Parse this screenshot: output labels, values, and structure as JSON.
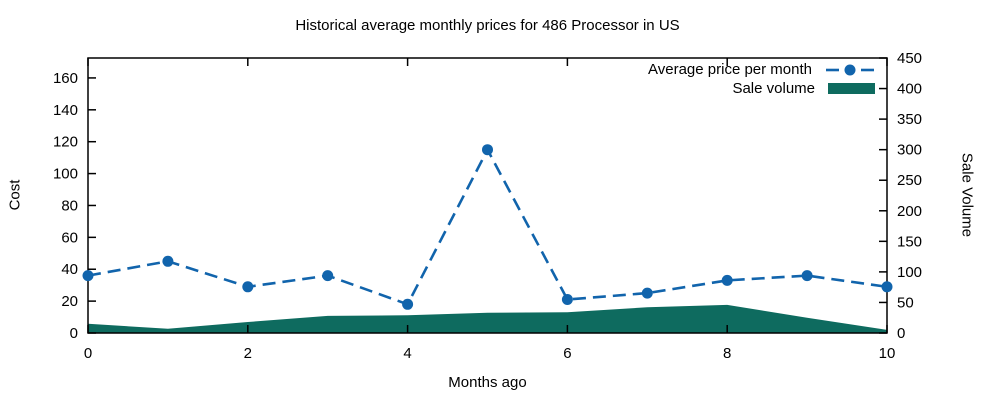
{
  "chart_data": {
    "type": "line",
    "title": "Historical average monthly prices for 486 Processor in US",
    "xlabel": "Months ago",
    "ylabel": "Cost",
    "y2label": "Sale Volume",
    "x": [
      0,
      1,
      2,
      3,
      4,
      5,
      6,
      7,
      8,
      9,
      10
    ],
    "series": [
      {
        "name": "Average price per month",
        "type": "line",
        "axis": "left",
        "style": "dashed-with-circle-markers",
        "color": "#1164ac",
        "values": [
          36,
          45,
          29,
          36,
          18,
          115,
          21,
          25,
          33,
          36,
          29
        ]
      },
      {
        "name": "Sale volume",
        "type": "area",
        "axis": "right",
        "style": "filled-area",
        "color": "#0e6b5f",
        "values": [
          15,
          7,
          18,
          28,
          29,
          33,
          34,
          42,
          46,
          25,
          5
        ]
      }
    ],
    "xlim": [
      0,
      10
    ],
    "ylim": [
      0,
      172.5
    ],
    "y2lim": [
      0,
      450
    ],
    "x_ticks": [
      0,
      2,
      4,
      6,
      8,
      10
    ],
    "y_ticks": [
      0,
      20,
      40,
      60,
      80,
      100,
      120,
      140,
      160
    ],
    "y2_ticks": [
      0,
      50,
      100,
      150,
      200,
      250,
      300,
      350,
      400,
      450
    ],
    "grid": false,
    "legend_position": "top-right-inside",
    "colors": {
      "line": "#1164ac",
      "area": "#0e6b5f",
      "axis": "#000000",
      "background": "#ffffff"
    }
  }
}
